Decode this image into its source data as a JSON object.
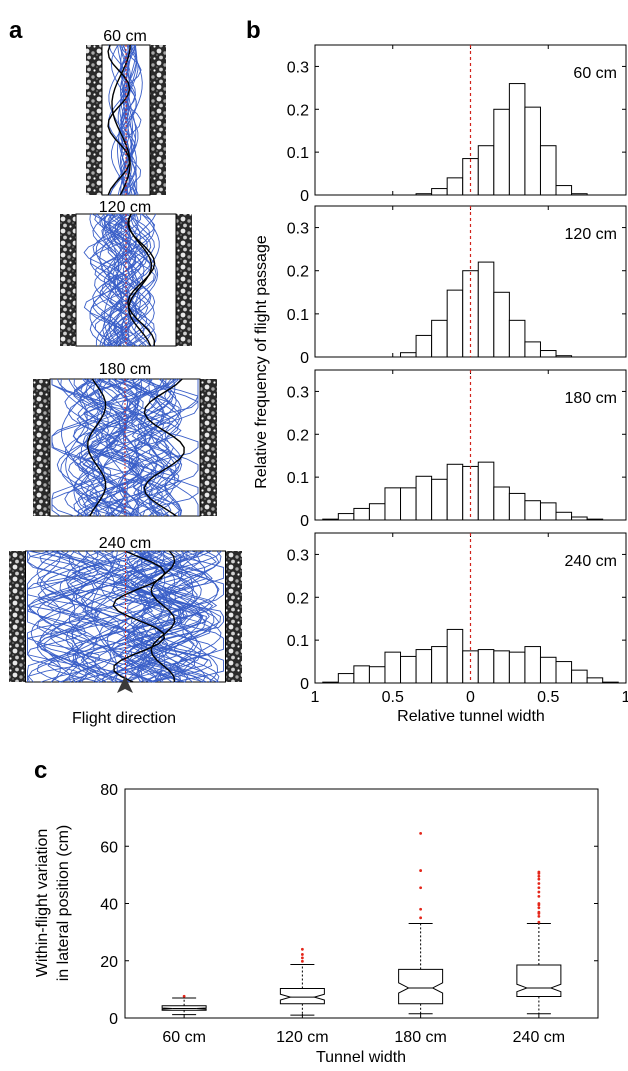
{
  "panels": {
    "a": "a",
    "b": "b",
    "c": "c"
  },
  "panel_a": {
    "tunnels": [
      {
        "label": "60 cm"
      },
      {
        "label": "120 cm"
      },
      {
        "label": "180 cm"
      },
      {
        "label": "240 cm"
      }
    ],
    "direction_label": "Flight direction",
    "colors": {
      "track": "#3a5fc8",
      "highlight": "#000000",
      "centerline": "#d2231c"
    }
  },
  "chart_data": [
    {
      "type": "bar",
      "panel": "b",
      "ylabel": "Relative frequency of flight passage",
      "xlabel": "Relative tunnel width",
      "x_tick_labels": [
        "1",
        "0.5",
        "0",
        "0.5",
        "1"
      ],
      "x_range": [
        -1,
        1
      ],
      "ylim": [
        0,
        0.35
      ],
      "y_ticks": [
        0,
        0.1,
        0.2,
        0.3
      ],
      "y_tick_labels": [
        "0",
        "0.1",
        "0.2",
        "0.3"
      ],
      "bin_centers": [
        -0.9,
        -0.8,
        -0.7,
        -0.6,
        -0.5,
        -0.4,
        -0.3,
        -0.2,
        -0.1,
        0.0,
        0.1,
        0.2,
        0.3,
        0.4,
        0.5,
        0.6,
        0.7,
        0.8,
        0.9
      ],
      "bin_width": 0.1,
      "reference_line_x": 0,
      "series": [
        {
          "name": "60 cm",
          "values": [
            0,
            0,
            0,
            0,
            0,
            0,
            0.003,
            0.015,
            0.04,
            0.085,
            0.115,
            0.2,
            0.26,
            0.205,
            0.115,
            0.022,
            0.003,
            0,
            0
          ]
        },
        {
          "name": "120 cm",
          "values": [
            0,
            0,
            0,
            0,
            0,
            0.01,
            0.05,
            0.085,
            0.155,
            0.2,
            0.22,
            0.15,
            0.085,
            0.035,
            0.015,
            0.003,
            0,
            0,
            0
          ]
        },
        {
          "name": "180 cm",
          "values": [
            0.002,
            0.015,
            0.027,
            0.038,
            0.075,
            0.075,
            0.102,
            0.095,
            0.13,
            0.125,
            0.135,
            0.077,
            0.062,
            0.045,
            0.04,
            0.018,
            0.007,
            0.002,
            0
          ]
        },
        {
          "name": "240 cm",
          "values": [
            0.002,
            0.022,
            0.04,
            0.038,
            0.072,
            0.062,
            0.078,
            0.085,
            0.125,
            0.075,
            0.078,
            0.075,
            0.072,
            0.085,
            0.06,
            0.05,
            0.03,
            0.012,
            0.002
          ]
        }
      ]
    },
    {
      "type": "box",
      "panel": "c",
      "ylabel_lines": [
        "Within-flight variation",
        "in lateral position (cm)"
      ],
      "xlabel": "Tunnel width",
      "categories": [
        "60 cm",
        "120 cm",
        "180 cm",
        "240 cm"
      ],
      "ylim": [
        0,
        80
      ],
      "y_ticks": [
        0,
        20,
        40,
        60,
        80
      ],
      "boxes": [
        {
          "name": "60 cm",
          "whisker_low": 1.2,
          "q1": 2.7,
          "median": 3.3,
          "q3": 4.3,
          "whisker_high": 7.0,
          "notch_low": 3.1,
          "notch_high": 3.5,
          "outliers": [
            7.6
          ]
        },
        {
          "name": "120 cm",
          "whisker_low": 1.0,
          "q1": 5.0,
          "median": 7.3,
          "q3": 10.3,
          "whisker_high": 18.7,
          "notch_low": 6.3,
          "notch_high": 8.3,
          "outliers": [
            19.8,
            21.0,
            22.2,
            24.0
          ]
        },
        {
          "name": "180 cm",
          "whisker_low": 1.5,
          "q1": 5.0,
          "median": 10.5,
          "q3": 17.0,
          "whisker_high": 33.0,
          "notch_low": 8.7,
          "notch_high": 12.3,
          "outliers": [
            35.0,
            38.0,
            45.5,
            51.5,
            64.5
          ]
        },
        {
          "name": "240 cm",
          "whisker_low": 1.5,
          "q1": 7.5,
          "median": 10.5,
          "q3": 18.5,
          "whisker_high": 33.0,
          "notch_low": 9.2,
          "notch_high": 11.8,
          "outliers": [
            33.5,
            35.5,
            36.5,
            37.0,
            38.5,
            39.5,
            40.0,
            42.5,
            44.0,
            45.5,
            47.0,
            48.5,
            49.5,
            50.5,
            51.0
          ]
        }
      ],
      "outlier_color": "#e4261a"
    }
  ]
}
